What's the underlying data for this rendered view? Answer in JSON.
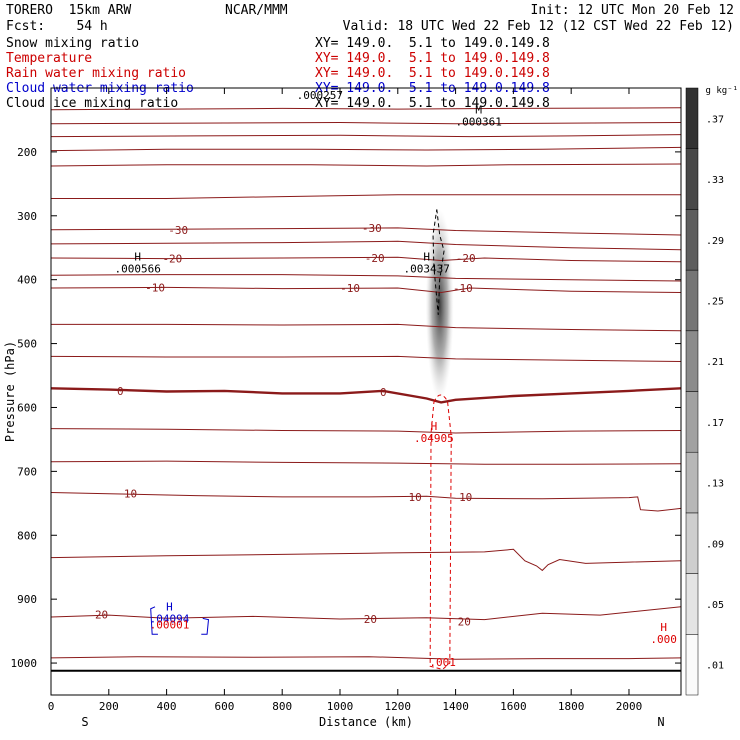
{
  "header": {
    "model": "TORERO  15km ARW",
    "org": "NCAR/MMM",
    "init": "Init: 12 UTC Mon 20 Feb 12",
    "fcst": "Fcst:    54 h",
    "valid": "Valid: 18 UTC Wed 22 Feb 12 (12 CST Wed 22 Feb 12)"
  },
  "fields": [
    {
      "name": "Snow mixing ratio",
      "xy": "XY= 149.0.  5.1 to 149.0.149.8",
      "color": "#000000"
    },
    {
      "name": "Temperature",
      "xy": "XY= 149.0.  5.1 to 149.0.149.8",
      "color": "#cc0000"
    },
    {
      "name": "Rain water mixing ratio",
      "xy": "XY= 149.0.  5.1 to 149.0.149.8",
      "color": "#cc0000"
    },
    {
      "name": "Cloud water mixing ratio",
      "xy": "XY= 149.0.  5.1 to 149.0.149.8",
      "color": "#0000cc"
    },
    {
      "name": "Cloud ice mixing ratio",
      "xy": "XY= 149.0.  5.1 to 149.0.149.8",
      "color": "#000000"
    }
  ],
  "colors": {
    "temperature": "#8b1a1a",
    "rain": "#dd0000",
    "cloud_water": "#0000cc",
    "ice": "#000000"
  },
  "chart_data": {
    "type": "cross-section",
    "xlabel": "Distance (km)",
    "ylabel": "Pressure (hPa)",
    "xlim": [
      0,
      2180
    ],
    "ylim": [
      1050,
      100
    ],
    "xticks": [
      0,
      200,
      400,
      600,
      800,
      1000,
      1200,
      1400,
      1600,
      1800,
      2000
    ],
    "yticks": [
      200,
      300,
      400,
      500,
      600,
      700,
      800,
      900,
      1000
    ],
    "left_end": "S",
    "right_end": "N",
    "colorbar": {
      "unit": "g kg⁻¹",
      "ticks": [
        ".01",
        ".05",
        ".09",
        ".13",
        ".17",
        ".21",
        ".25",
        ".29",
        ".33",
        ".37"
      ]
    },
    "snow_shading": {
      "center_km": 1345,
      "top_hPa": 290,
      "bottom_hPa": 590,
      "max_g_kg": 0.37
    },
    "temperature_labels": [
      {
        "x": 440,
        "p": 322,
        "text": "-30"
      },
      {
        "x": 1110,
        "p": 319,
        "text": "-30"
      },
      {
        "x": 420,
        "p": 367,
        "text": "-20"
      },
      {
        "x": 1120,
        "p": 366,
        "text": "-20"
      },
      {
        "x": 1435,
        "p": 366,
        "text": "-20"
      },
      {
        "x": 360,
        "p": 412,
        "text": "-10"
      },
      {
        "x": 1035,
        "p": 413,
        "text": "-10"
      },
      {
        "x": 1425,
        "p": 413,
        "text": "-10"
      },
      {
        "x": 240,
        "p": 574,
        "text": "0"
      },
      {
        "x": 1150,
        "p": 576,
        "text": "0"
      },
      {
        "x": 275,
        "p": 735,
        "text": "10"
      },
      {
        "x": 1260,
        "p": 740,
        "text": "10"
      },
      {
        "x": 1435,
        "p": 740,
        "text": "10"
      },
      {
        "x": 175,
        "p": 924,
        "text": "20"
      },
      {
        "x": 1105,
        "p": 931,
        "text": "20"
      },
      {
        "x": 1430,
        "p": 935,
        "text": "20"
      }
    ],
    "maxima": [
      {
        "x": 300,
        "p": 370,
        "symbol": "H",
        "value": ".000566",
        "field": "ice"
      },
      {
        "x": 1300,
        "p": 370,
        "symbol": "H",
        "value": ".003437",
        "field": "ice"
      },
      {
        "x": 1480,
        "p": 140,
        "symbol": "M",
        "value": ".000361",
        "field": "ice"
      },
      {
        "x": 930,
        "p": 117,
        "symbol": "",
        "value": ".000257",
        "field": "ice"
      },
      {
        "x": 1325,
        "p": 635,
        "symbol": "H",
        "value": ".04905",
        "field": "rain"
      },
      {
        "x": 1355,
        "p": 1005,
        "symbol": "",
        "value": ".001",
        "field": "rain"
      },
      {
        "x": 2120,
        "p": 950,
        "symbol": "H",
        "value": ".000",
        "field": "rain"
      },
      {
        "x": 410,
        "p": 918,
        "symbol": "H",
        "value": ".04094",
        "field": "cloud_water"
      },
      {
        "x": 410,
        "p": 946,
        "symbol": "",
        "value": ".00001",
        "field": "rain"
      }
    ],
    "temperature_isotherms": [
      {
        "level": -50,
        "points": [
          [
            0,
            134
          ],
          [
            400,
            133
          ],
          [
            800,
            132
          ],
          [
            1200,
            133
          ],
          [
            1600,
            132
          ],
          [
            2180,
            131
          ]
        ]
      },
      {
        "level": -55,
        "points": [
          [
            0,
            156
          ],
          [
            500,
            155
          ],
          [
            1000,
            154
          ],
          [
            1400,
            156
          ],
          [
            1800,
            155
          ],
          [
            2180,
            154
          ]
        ]
      },
      {
        "level": -50,
        "points": [
          [
            0,
            176
          ],
          [
            500,
            175
          ],
          [
            1000,
            174
          ],
          [
            1450,
            176
          ],
          [
            1800,
            175
          ],
          [
            2180,
            173
          ]
        ]
      },
      {
        "level": -45,
        "points": [
          [
            0,
            198
          ],
          [
            400,
            196
          ],
          [
            900,
            196
          ],
          [
            1300,
            197
          ],
          [
            1700,
            196
          ],
          [
            2180,
            193
          ]
        ]
      },
      {
        "level": -40,
        "points": [
          [
            0,
            222
          ],
          [
            400,
            220
          ],
          [
            900,
            220
          ],
          [
            1300,
            222
          ],
          [
            1600,
            220
          ],
          [
            2180,
            219
          ]
        ]
      },
      {
        "level": -35,
        "points": [
          [
            0,
            273
          ],
          [
            400,
            273
          ],
          [
            800,
            270
          ],
          [
            1200,
            267
          ],
          [
            1500,
            267
          ],
          [
            2180,
            267
          ]
        ]
      },
      {
        "level": -30,
        "points": [
          [
            0,
            322
          ],
          [
            400,
            321
          ],
          [
            800,
            320
          ],
          [
            1200,
            319
          ],
          [
            1400,
            323
          ],
          [
            1800,
            327
          ],
          [
            2180,
            330
          ]
        ]
      },
      {
        "level": -25,
        "points": [
          [
            0,
            344
          ],
          [
            400,
            343
          ],
          [
            800,
            342
          ],
          [
            1200,
            340
          ],
          [
            1400,
            345
          ],
          [
            1800,
            350
          ],
          [
            2180,
            353
          ]
        ]
      },
      {
        "level": -20,
        "points": [
          [
            0,
            366
          ],
          [
            400,
            367
          ],
          [
            800,
            366
          ],
          [
            1200,
            365
          ],
          [
            1350,
            370
          ],
          [
            1500,
            366
          ],
          [
            1800,
            370
          ],
          [
            2180,
            372
          ]
        ]
      },
      {
        "level": -15,
        "points": [
          [
            0,
            393
          ],
          [
            400,
            392
          ],
          [
            800,
            392
          ],
          [
            1200,
            394
          ],
          [
            1400,
            398
          ],
          [
            1800,
            400
          ],
          [
            2180,
            402
          ]
        ]
      },
      {
        "level": -10,
        "points": [
          [
            0,
            413
          ],
          [
            400,
            412
          ],
          [
            800,
            414
          ],
          [
            1200,
            413
          ],
          [
            1350,
            420
          ],
          [
            1450,
            413
          ],
          [
            1800,
            418
          ],
          [
            2180,
            420
          ]
        ]
      },
      {
        "level": -5,
        "points": [
          [
            0,
            470
          ],
          [
            400,
            470
          ],
          [
            800,
            471
          ],
          [
            1200,
            470
          ],
          [
            1400,
            475
          ],
          [
            1800,
            478
          ],
          [
            2180,
            480
          ]
        ]
      },
      {
        "level": -2,
        "points": [
          [
            0,
            520
          ],
          [
            400,
            521
          ],
          [
            800,
            521
          ],
          [
            1200,
            520
          ],
          [
            1400,
            524
          ],
          [
            1800,
            526
          ],
          [
            2180,
            528
          ]
        ]
      },
      {
        "level": 0,
        "points": [
          [
            0,
            570
          ],
          [
            200,
            572
          ],
          [
            400,
            575
          ],
          [
            600,
            574
          ],
          [
            800,
            578
          ],
          [
            1000,
            578
          ],
          [
            1150,
            574
          ],
          [
            1300,
            586
          ],
          [
            1350,
            592
          ],
          [
            1400,
            588
          ],
          [
            1600,
            582
          ],
          [
            1800,
            578
          ],
          [
            2000,
            574
          ],
          [
            2180,
            570
          ]
        ]
      },
      {
        "level": 5,
        "points": [
          [
            0,
            633
          ],
          [
            400,
            634
          ],
          [
            800,
            636
          ],
          [
            1200,
            637
          ],
          [
            1400,
            640
          ],
          [
            1800,
            637
          ],
          [
            2180,
            636
          ]
        ]
      },
      {
        "level": 8,
        "points": [
          [
            0,
            685
          ],
          [
            400,
            684
          ],
          [
            800,
            686
          ],
          [
            1200,
            687
          ],
          [
            1500,
            689
          ],
          [
            1800,
            689
          ],
          [
            2180,
            688
          ]
        ]
      },
      {
        "level": 10,
        "points": [
          [
            0,
            733
          ],
          [
            200,
            735
          ],
          [
            500,
            738
          ],
          [
            800,
            740
          ],
          [
            1100,
            740
          ],
          [
            1300,
            739
          ],
          [
            1400,
            742
          ],
          [
            1700,
            743
          ],
          [
            2000,
            741
          ],
          [
            2030,
            740
          ],
          [
            2040,
            760
          ],
          [
            2100,
            762
          ],
          [
            2180,
            758
          ]
        ]
      },
      {
        "level": 15,
        "points": [
          [
            0,
            835
          ],
          [
            400,
            832
          ],
          [
            800,
            830
          ],
          [
            1100,
            828
          ],
          [
            1300,
            827
          ],
          [
            1500,
            826
          ],
          [
            1600,
            822
          ],
          [
            1640,
            840
          ],
          [
            1680,
            848
          ],
          [
            1700,
            855
          ],
          [
            1720,
            846
          ],
          [
            1760,
            838
          ],
          [
            1850,
            844
          ],
          [
            2000,
            842
          ],
          [
            2180,
            840
          ]
        ]
      },
      {
        "level": 20,
        "points": [
          [
            0,
            928
          ],
          [
            200,
            925
          ],
          [
            400,
            930
          ],
          [
            700,
            927
          ],
          [
            1000,
            931
          ],
          [
            1300,
            929
          ],
          [
            1500,
            932
          ],
          [
            1700,
            922
          ],
          [
            1900,
            925
          ],
          [
            2180,
            912
          ]
        ]
      },
      {
        "level": 25,
        "points": [
          [
            0,
            992
          ],
          [
            300,
            990
          ],
          [
            700,
            991
          ],
          [
            1100,
            990
          ],
          [
            1400,
            994
          ],
          [
            1700,
            993
          ],
          [
            2000,
            993
          ],
          [
            2180,
            992
          ]
        ]
      }
    ],
    "ground_p": 1012
  }
}
